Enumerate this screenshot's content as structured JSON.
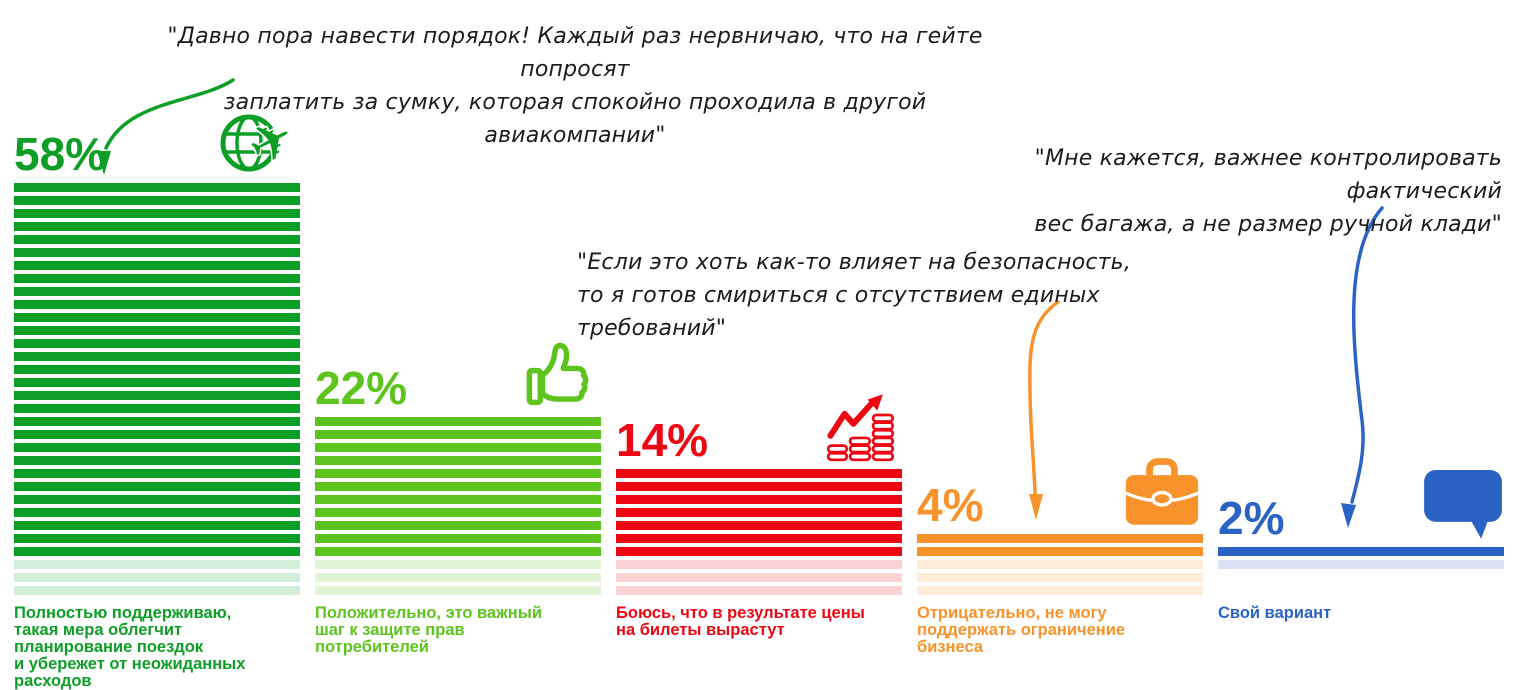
{
  "chart_data": {
    "type": "bar",
    "title": "",
    "xlabel": "",
    "ylabel": "",
    "unit": "%",
    "grid": false,
    "legend": false,
    "stripe_percent_per_stripe": 2,
    "categories": [
      "Полностью поддерживаю, такая мера облегчит планирование поездок и убережет от неожиданных расходов",
      "Положительно, это важный шаг к защите прав потребителей",
      "Боюсь, что в результате цены на билеты вырастут",
      "Отрицательно, не могу поддержать ограничение бизнеса",
      "Свой вариант"
    ],
    "values": [
      58,
      22,
      14,
      4,
      2
    ],
    "bars": [
      {
        "value": 58,
        "value_label": "58%",
        "caption": "Полностью поддерживаю,\nтакая мера облегчит\nпланирование поездок\nи убережет от неожиданных\nрасходов",
        "color": "#0d9e26",
        "icon": "globe-plane-icon",
        "faded_stripes": 3
      },
      {
        "value": 22,
        "value_label": "22%",
        "caption": "Положительно, это важный\nшаг к защите прав\nпотребителей",
        "color": "#5cc41d",
        "icon": "thumbs-up-icon",
        "faded_stripes": 3
      },
      {
        "value": 14,
        "value_label": "14%",
        "caption": "Боюсь, что в результате цены\nна билеты вырастут",
        "color": "#ed0713",
        "icon": "rising-prices-icon",
        "faded_stripes": 3
      },
      {
        "value": 4,
        "value_label": "4%",
        "caption": "Отрицательно, не могу\nподдержать ограничение\nбизнеса",
        "color": "#f8932c",
        "icon": "briefcase-icon",
        "faded_stripes": 3
      },
      {
        "value": 2,
        "value_label": "2%",
        "caption": "Свой вариант",
        "color": "#2b63c4",
        "icon": "speech-bubble-icon",
        "faded_stripes": 1
      }
    ]
  },
  "quotes": [
    {
      "text": "\"Давно пора навести порядок! Каждый раз нервничаю, что на гейте попросят\nзаплатить за сумку, которая спокойно проходила в другой авиакомпании\"",
      "arrow_color": "#0d9e26",
      "points_to": "58%"
    },
    {
      "text": "\"Мне кажется, важнее контролировать фактический\nвес багажа, а не размер ручной клади\"",
      "arrow_color": "#2b63c4",
      "points_to": "2%"
    },
    {
      "text": "\"Если это хоть как-то влияет на безопасность,\nто я готов смириться с отсутствием единых требований\"",
      "arrow_color": "#f8932c",
      "points_to": "4%"
    }
  ]
}
